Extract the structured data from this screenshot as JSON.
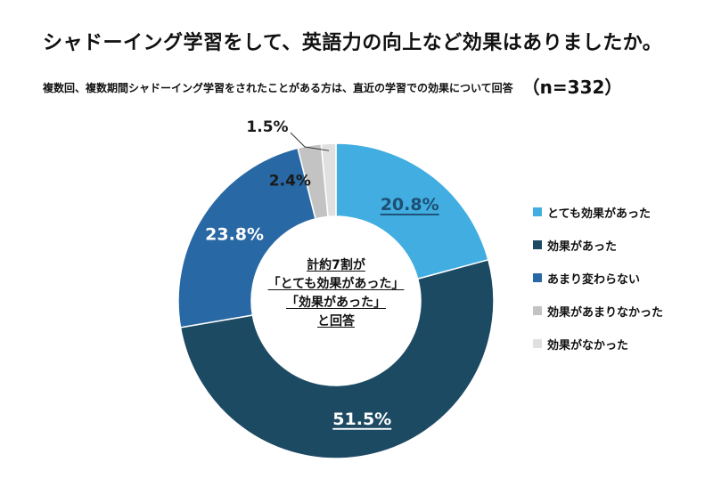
{
  "header": {
    "title": "シャドーイング学習をして、英語力の向上など効果はありましたか。",
    "subtitle": "複数回、複数期間シャドーイング学習をされたことがある方は、直近の学習での効果について回答",
    "sample": "（n=332）"
  },
  "center_note": {
    "line1": "計約7割が",
    "line2": "「とても効果があった」",
    "line3": "「効果があった」",
    "line4": "と回答"
  },
  "chart_data": {
    "type": "pie",
    "variant": "donut",
    "title": "シャドーイング学習をして、英語力の向上など効果はありましたか。",
    "n": 332,
    "categories": [
      "とても効果があった",
      "効果があった",
      "あまり変わらない",
      "効果があまりなかった",
      "効果がなかった"
    ],
    "values": [
      20.8,
      51.5,
      23.8,
      2.4,
      1.5
    ],
    "labels": [
      "20.8%",
      "51.5%",
      "23.8%",
      "2.4%",
      "1.5%"
    ],
    "colors": [
      "#41ade1",
      "#1d4a63",
      "#2868a4",
      "#c3c3c3",
      "#e0e0e0"
    ],
    "label_colors": [
      "#1d4f73",
      "#ffffff",
      "#ffffff",
      "#1a1a1a",
      "#1a1a1a"
    ],
    "underlined": [
      true,
      true,
      false,
      false,
      false
    ],
    "legend_position": "right"
  }
}
